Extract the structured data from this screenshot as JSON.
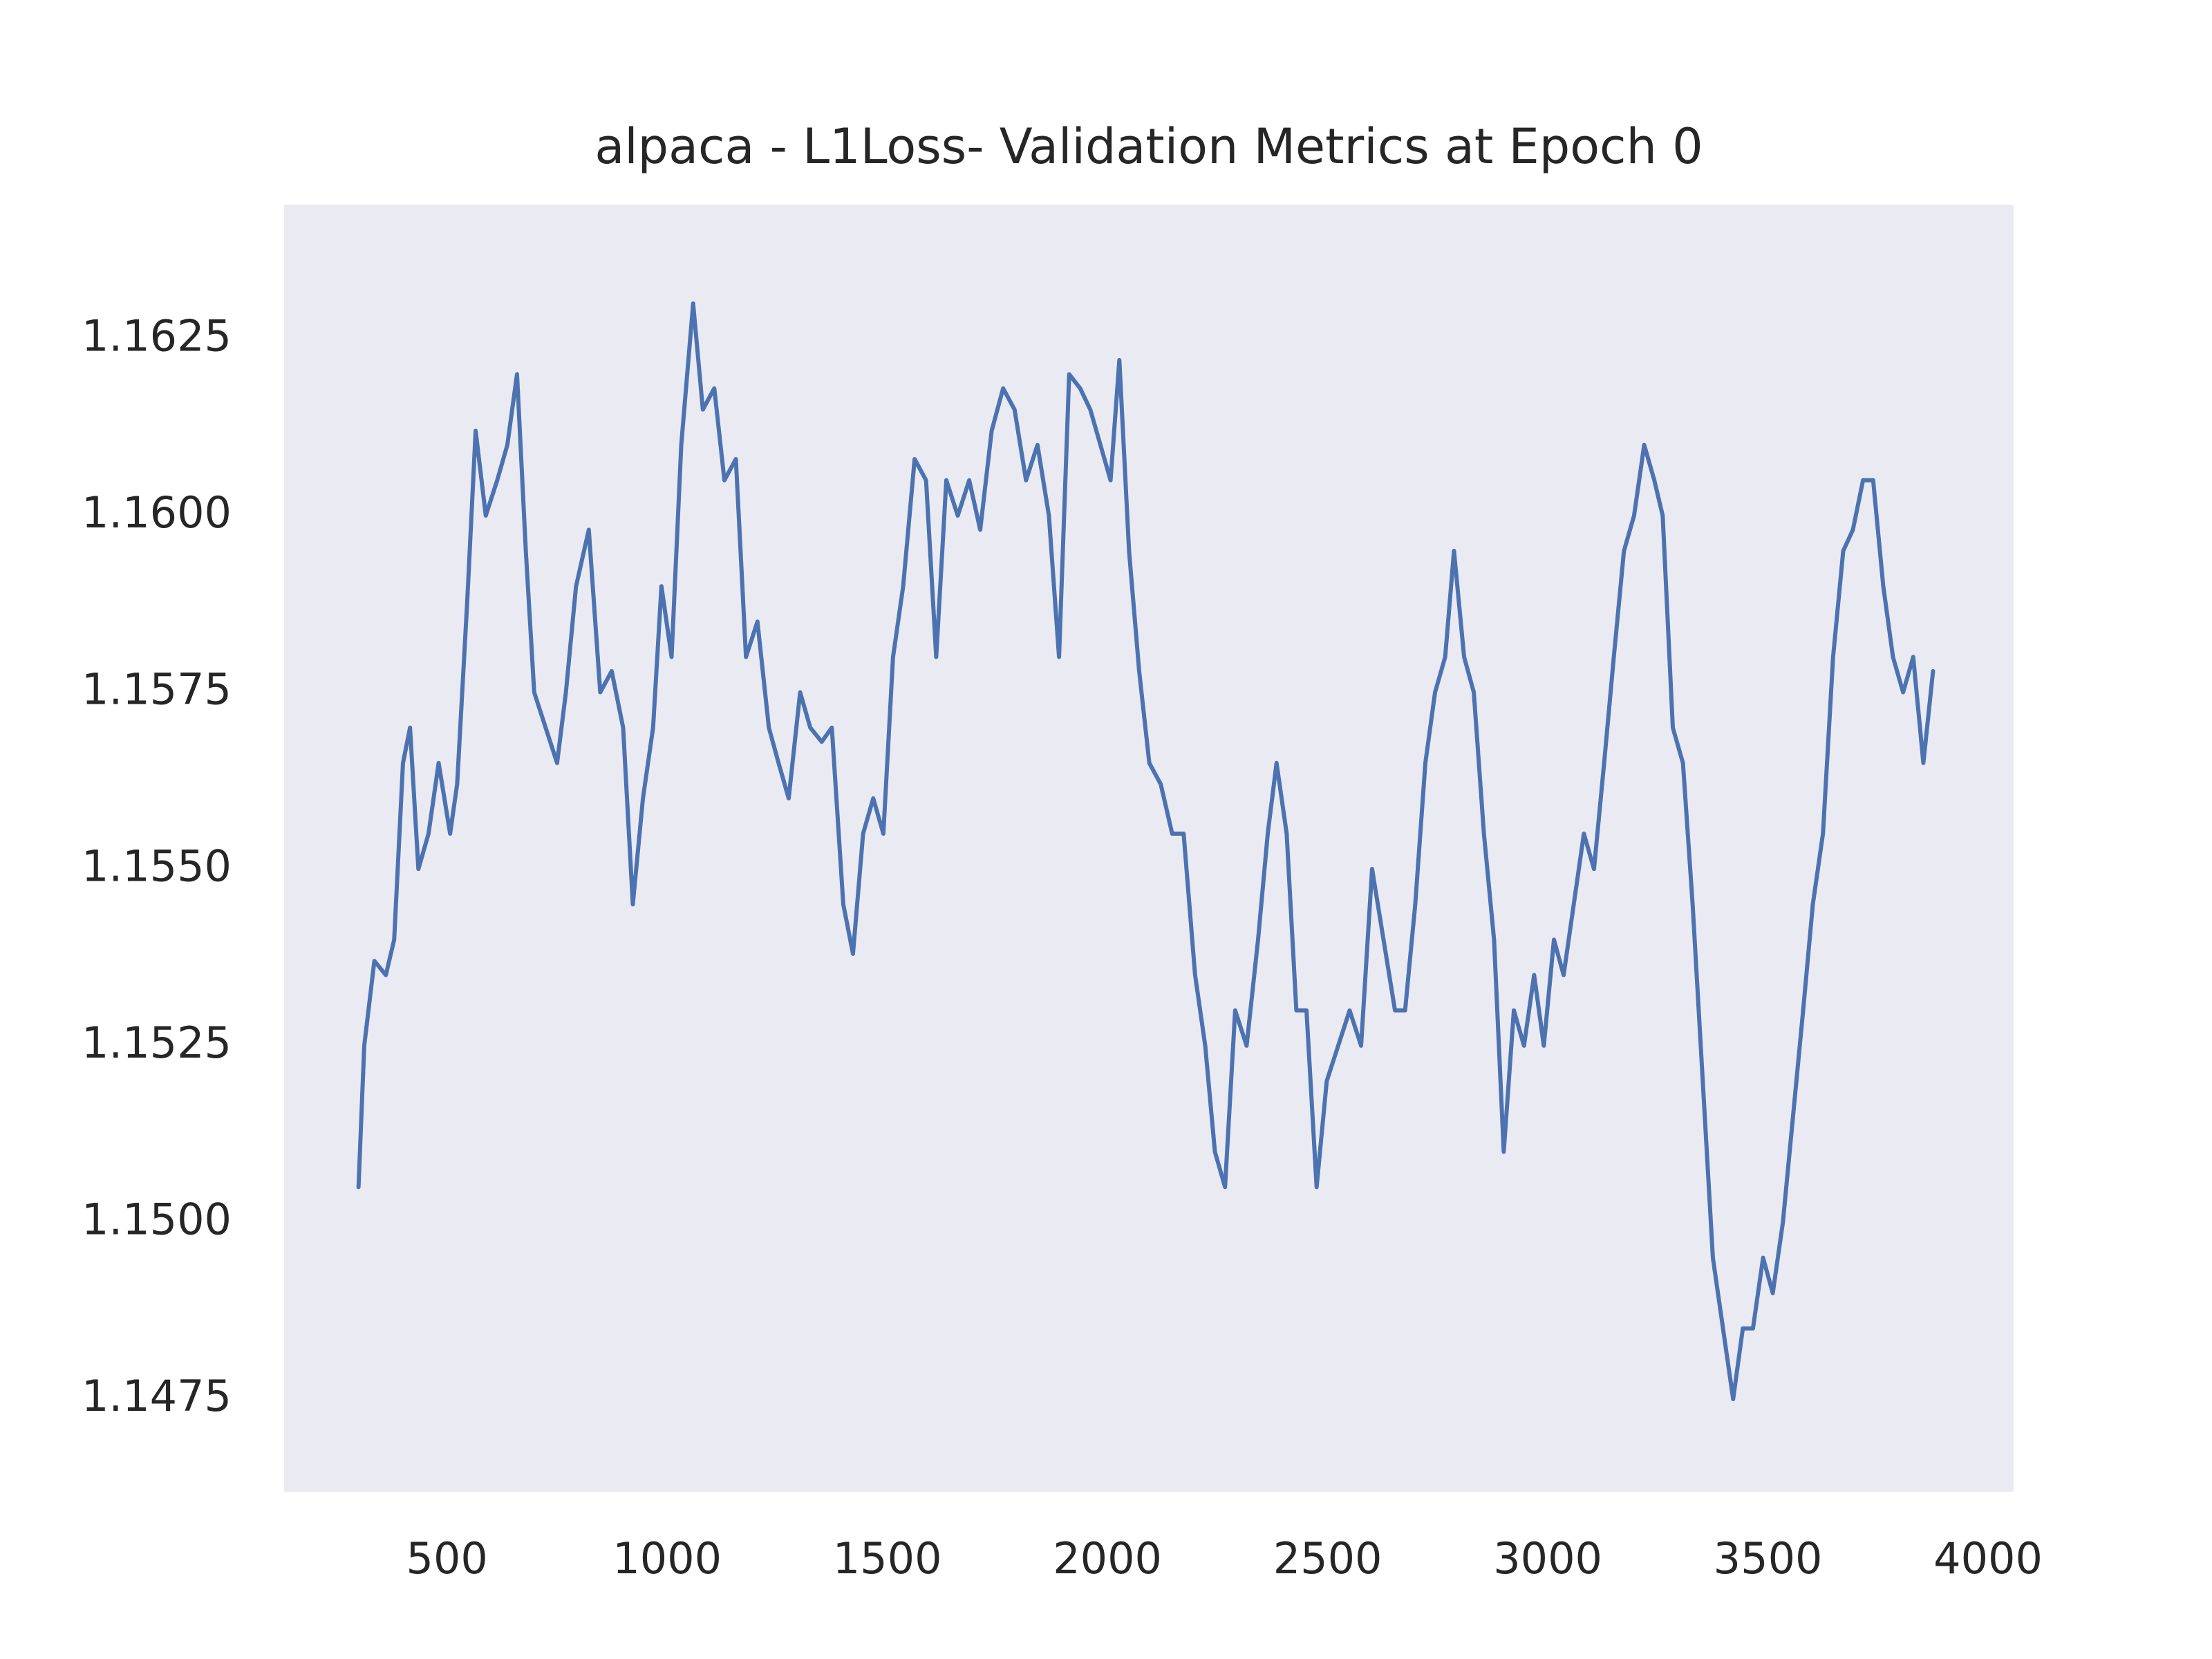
{
  "chart_data": {
    "type": "line",
    "title": "alpaca - L1Loss- Validation Metrics at Epoch 0",
    "color": "#4c72b0",
    "grid": false,
    "xlim": [
      130,
      4058
    ],
    "ylim": [
      1.14619,
      1.1644
    ],
    "xticks": [
      500,
      1000,
      1500,
      2000,
      2500,
      3000,
      3500,
      4000
    ],
    "yticks": [
      {
        "value": 1.1475,
        "label": "1.1475"
      },
      {
        "value": 1.15,
        "label": "1.1500"
      },
      {
        "value": 1.1525,
        "label": "1.1525"
      },
      {
        "value": 1.155,
        "label": "1.1550"
      },
      {
        "value": 1.1575,
        "label": "1.1575"
      },
      {
        "value": 1.16,
        "label": "1.1600"
      },
      {
        "value": 1.1625,
        "label": "1.1625"
      }
    ],
    "x": [
      299,
      312,
      335,
      361,
      380,
      400,
      416,
      435,
      458,
      481,
      507,
      523,
      546,
      565,
      588,
      614,
      637,
      659,
      679,
      698,
      724,
      750,
      770,
      793,
      822,
      848,
      874,
      900,
      922,
      945,
      968,
      987,
      1010,
      1032,
      1059,
      1081,
      1107,
      1130,
      1156,
      1179,
      1205,
      1231,
      1253,
      1276,
      1302,
      1325,
      1351,
      1374,
      1400,
      1422,
      1445,
      1468,
      1491,
      1513,
      1536,
      1562,
      1588,
      1611,
      1634,
      1660,
      1686,
      1711,
      1737,
      1763,
      1789,
      1815,
      1841,
      1867,
      1890,
      1913,
      1938,
      1961,
      1984,
      2007,
      2027,
      2049,
      2072,
      2095,
      2121,
      2147,
      2173,
      2199,
      2222,
      2244,
      2267,
      2290,
      2316,
      2342,
      2364,
      2384,
      2407,
      2429,
      2452,
      2475,
      2498,
      2524,
      2550,
      2576,
      2601,
      2627,
      2653,
      2676,
      2699,
      2722,
      2744,
      2767,
      2787,
      2810,
      2832,
      2855,
      2878,
      2900,
      2923,
      2946,
      2969,
      2991,
      3014,
      3036,
      3059,
      3082,
      3105,
      3128,
      3150,
      3173,
      3196,
      3219,
      3242,
      3261,
      3284,
      3307,
      3329,
      3352,
      3375,
      3398,
      3421,
      3443,
      3466,
      3489,
      3511,
      3534,
      3557,
      3580,
      3602,
      3625,
      3648,
      3671,
      3693,
      3716,
      3739,
      3762,
      3784,
      3807,
      3830,
      3853,
      3875
    ],
    "values": [
      1.1505,
      1.1525,
      1.1537,
      1.1535,
      1.154,
      1.1565,
      1.157,
      1.155,
      1.1555,
      1.1565,
      1.1555,
      1.1562,
      1.1588,
      1.1612,
      1.16,
      1.1605,
      1.161,
      1.162,
      1.1595,
      1.1575,
      1.157,
      1.1565,
      1.1575,
      1.159,
      1.1598,
      1.1575,
      1.1578,
      1.157,
      1.1545,
      1.156,
      1.157,
      1.159,
      1.158,
      1.161,
      1.163,
      1.1615,
      1.1618,
      1.1605,
      1.1608,
      1.158,
      1.1585,
      1.157,
      1.1565,
      1.156,
      1.1575,
      1.157,
      1.1568,
      1.157,
      1.1545,
      1.1538,
      1.1555,
      1.156,
      1.1555,
      1.158,
      1.159,
      1.1608,
      1.1605,
      1.158,
      1.1605,
      1.16,
      1.1605,
      1.1598,
      1.1612,
      1.1618,
      1.1615,
      1.1605,
      1.161,
      1.16,
      1.158,
      1.162,
      1.1618,
      1.1615,
      1.161,
      1.1605,
      1.1622,
      1.1595,
      1.1578,
      1.1565,
      1.1562,
      1.1555,
      1.1555,
      1.1535,
      1.1525,
      1.151,
      1.1505,
      1.153,
      1.1525,
      1.154,
      1.1555,
      1.1565,
      1.1555,
      1.153,
      1.153,
      1.1505,
      1.152,
      1.1525,
      1.153,
      1.1525,
      1.155,
      1.154,
      1.153,
      1.153,
      1.1545,
      1.1565,
      1.1575,
      1.158,
      1.1595,
      1.158,
      1.1575,
      1.1555,
      1.154,
      1.151,
      1.153,
      1.1525,
      1.1535,
      1.1525,
      1.154,
      1.1535,
      1.1545,
      1.1555,
      1.155,
      1.1565,
      1.158,
      1.1595,
      1.16,
      1.161,
      1.1605,
      1.16,
      1.157,
      1.1565,
      1.1545,
      1.152,
      1.1495,
      1.1485,
      1.1475,
      1.1485,
      1.1485,
      1.1495,
      1.149,
      1.15,
      1.1515,
      1.153,
      1.1545,
      1.1555,
      1.158,
      1.1595,
      1.1598,
      1.1605,
      1.1605,
      1.159,
      1.158,
      1.1575,
      1.158,
      1.1565,
      1.1578
    ]
  }
}
